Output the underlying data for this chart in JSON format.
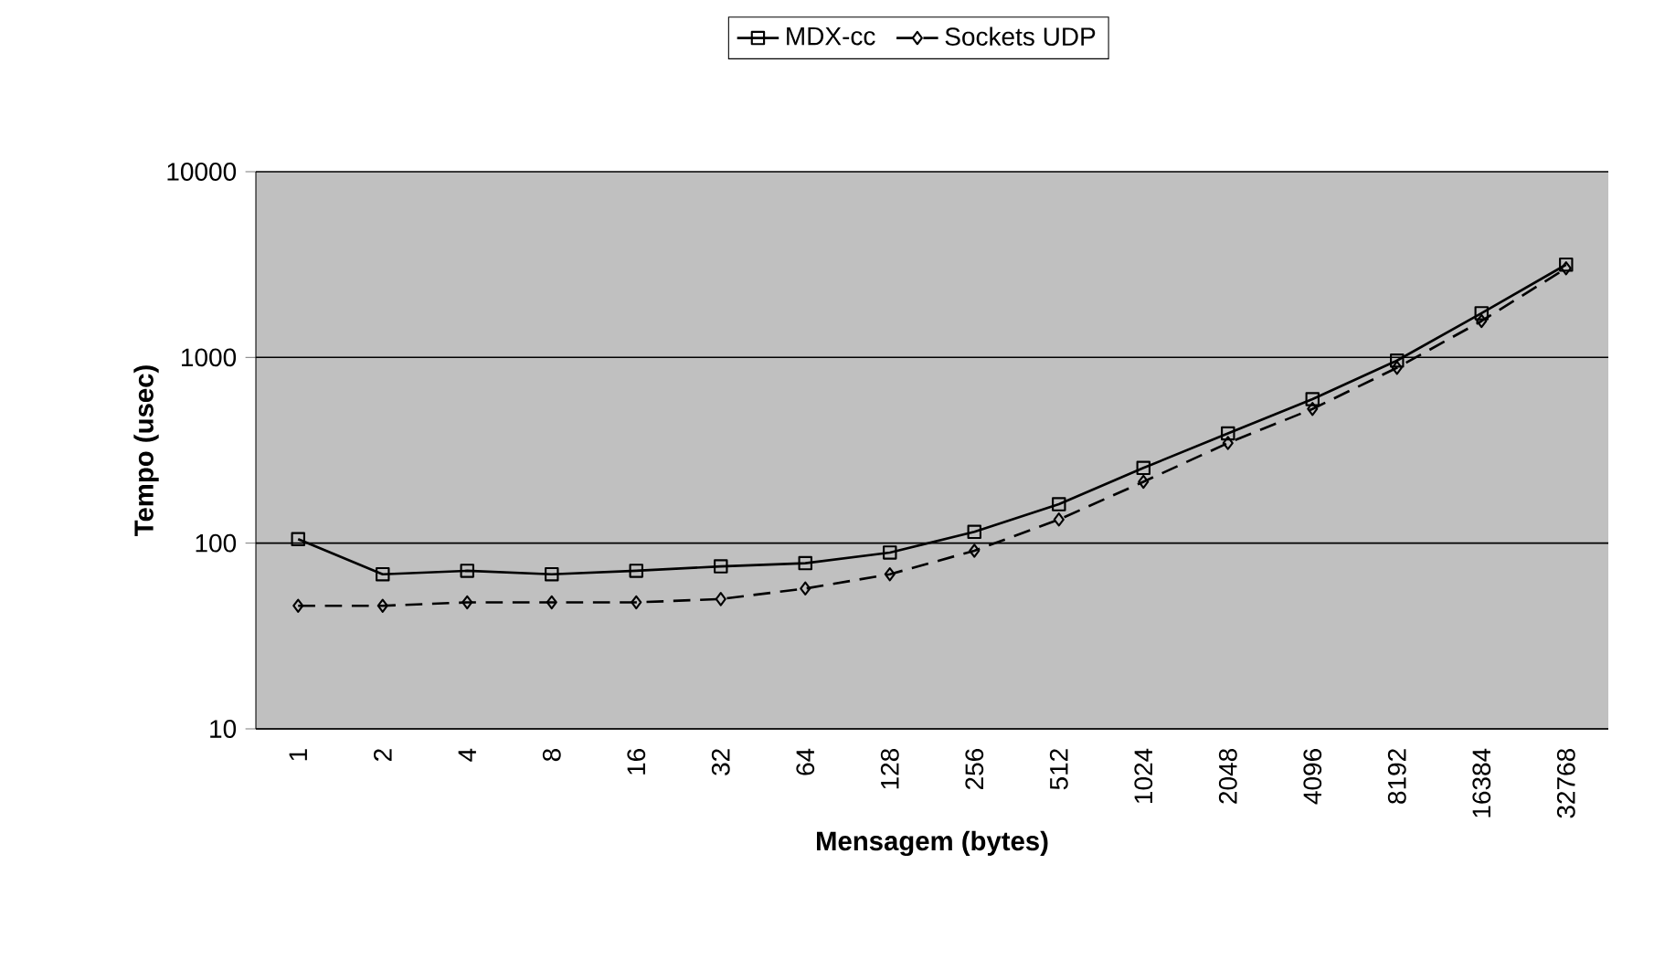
{
  "chart_data": {
    "type": "line",
    "xlabel": "Mensagem (bytes)",
    "ylabel": "Tempo (usec)",
    "categories": [
      "1",
      "2",
      "4",
      "8",
      "16",
      "32",
      "64",
      "128",
      "256",
      "512",
      "1024",
      "2048",
      "4096",
      "8192",
      "16384",
      "32768"
    ],
    "series": [
      {
        "name": "MDX-cc",
        "color": "#000000",
        "marker": "square",
        "line_style": "solid",
        "values": [
          105,
          68,
          71,
          68,
          71,
          75,
          78,
          89,
          115,
          162,
          254,
          390,
          596,
          962,
          1730,
          3160
        ]
      },
      {
        "name": "Sockets UDP",
        "color": "#000000",
        "marker": "diamond",
        "line_style": "dashed",
        "values": [
          46,
          46,
          48,
          48,
          48,
          50,
          57,
          68,
          91,
          134,
          214,
          346,
          528,
          880,
          1570,
          3020
        ]
      }
    ],
    "log": "y",
    "ylim": [
      10,
      10000
    ],
    "yticks": [
      10,
      100,
      1000,
      10000
    ],
    "grid": "y",
    "legend": "top"
  }
}
